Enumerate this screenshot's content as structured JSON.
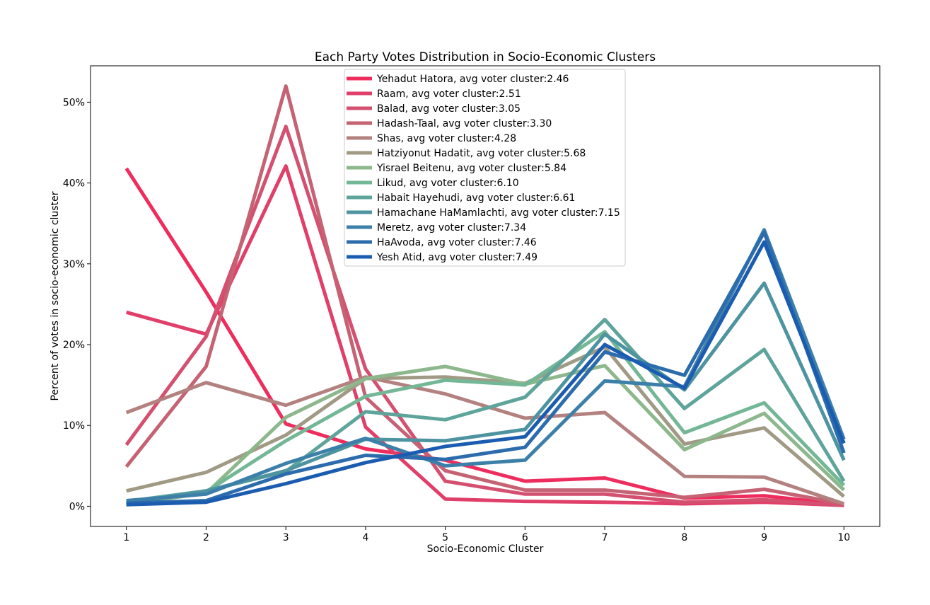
{
  "chart_data": {
    "type": "line",
    "title": "Each Party Votes Distribution in Socio-Economic Clusters",
    "xlabel": "Socio-Economic Cluster",
    "ylabel": "Percent of votes in socio-economic cluster",
    "x": [
      1,
      2,
      3,
      4,
      5,
      6,
      7,
      8,
      9,
      10
    ],
    "xlim": [
      0.55,
      10.45
    ],
    "ylim": [
      -2.5,
      54.5
    ],
    "yticks": [
      0,
      10,
      20,
      30,
      40,
      50
    ],
    "ytick_labels": [
      "0%",
      "10%",
      "20%",
      "30%",
      "40%",
      "50%"
    ],
    "grid": false,
    "legend_position": "upper-center",
    "series": [
      {
        "name": "Yehadut Hatora, avg voter cluster:2.46",
        "color": "#ee2c5e",
        "values": [
          41.8,
          26.5,
          10.2,
          7.1,
          5.7,
          3.1,
          3.5,
          1.0,
          1.3,
          0.2
        ]
      },
      {
        "name": "Raam, avg voter cluster:2.51",
        "color": "#e03f69",
        "values": [
          24.0,
          21.3,
          42.1,
          9.8,
          0.9,
          0.6,
          0.5,
          0.3,
          0.5,
          0.1
        ]
      },
      {
        "name": "Balad, avg voter cluster:3.05",
        "color": "#d45070",
        "values": [
          7.6,
          21.0,
          47.0,
          17.0,
          3.1,
          1.5,
          1.5,
          0.5,
          0.8,
          0.1
        ]
      },
      {
        "name": "Hadash-Taal, avg voter cluster:3.30",
        "color": "#c56273",
        "values": [
          4.9,
          17.3,
          52.0,
          13.5,
          4.4,
          2.0,
          2.0,
          1.1,
          2.1,
          0.3
        ]
      },
      {
        "name": "Shas, avg voter cluster:4.28",
        "color": "#b38280",
        "values": [
          11.6,
          15.3,
          12.5,
          16.0,
          13.9,
          10.9,
          11.6,
          3.7,
          3.6,
          0.3
        ]
      },
      {
        "name": "Hatziyonut Hadatit, avg voter cluster:5.68",
        "color": "#a09a85",
        "values": [
          1.9,
          4.2,
          8.8,
          15.8,
          16.0,
          15.2,
          19.7,
          7.7,
          9.7,
          1.2
        ]
      },
      {
        "name": "Yisrael Beitenu, avg voter cluster:5.84",
        "color": "#8db78c",
        "values": [
          0.3,
          1.6,
          11.0,
          15.8,
          17.3,
          15.1,
          17.4,
          7.0,
          11.5,
          2.0
        ]
      },
      {
        "name": "Likud, avg voter cluster:6.10",
        "color": "#74b796",
        "values": [
          0.4,
          1.8,
          8.1,
          13.6,
          15.6,
          15.0,
          21.6,
          9.1,
          12.8,
          2.6
        ]
      },
      {
        "name": "Habait Hayehudi, avg voter cluster:6.61",
        "color": "#5ea49a",
        "values": [
          0.6,
          1.9,
          4.3,
          11.7,
          10.7,
          13.5,
          23.1,
          12.1,
          19.4,
          3.1
        ]
      },
      {
        "name": "Hamachane HaMamlachti, avg voter cluster:7.15",
        "color": "#4d93a0",
        "values": [
          0.3,
          1.9,
          4.4,
          8.3,
          8.1,
          9.5,
          21.3,
          14.4,
          27.6,
          5.7
        ]
      },
      {
        "name": "Meretz, avg voter cluster:7.34",
        "color": "#3c80aa",
        "values": [
          0.7,
          1.5,
          5.3,
          8.4,
          5.0,
          5.7,
          15.5,
          14.8,
          34.2,
          8.3
        ]
      },
      {
        "name": "HaAvoda, avg voter cluster:7.46",
        "color": "#2c6cad",
        "values": [
          0.4,
          0.7,
          4.0,
          6.3,
          5.8,
          7.3,
          19.1,
          16.2,
          33.9,
          6.6
        ]
      },
      {
        "name": "Yesh Atid, avg voter cluster:7.49",
        "color": "#1b5cb0",
        "values": [
          0.2,
          0.5,
          2.8,
          5.4,
          7.4,
          8.6,
          20.0,
          14.6,
          32.7,
          7.8
        ]
      }
    ]
  }
}
